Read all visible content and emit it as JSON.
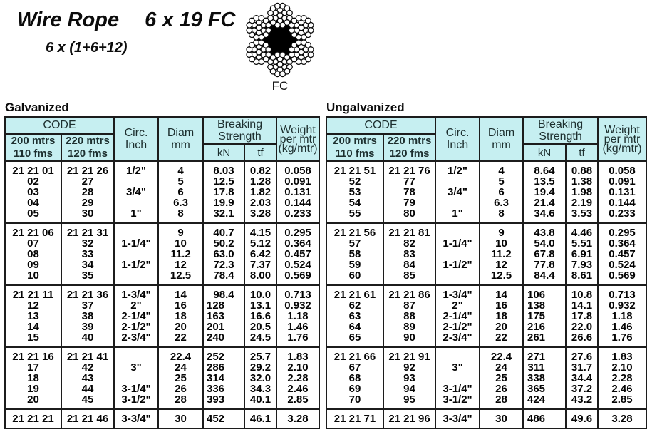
{
  "title": {
    "main": "Wire Rope",
    "spec": "6 x 19 FC",
    "construction": "6 x (1+6+12)"
  },
  "diagram": {
    "label": "FC"
  },
  "colors": {
    "header_bg": "#c6eff1",
    "border": "#1c1c1c",
    "text": "#050505"
  },
  "header": {
    "code": "CODE",
    "len200_l1": "200 mtrs",
    "len200_l2": "110 fms",
    "len220_l1": "220 mtrs",
    "len220_l2": "120 fms",
    "circ_l1": "Circ.",
    "circ_l2": "Inch",
    "diam_l1": "Diam",
    "diam_l2": "mm",
    "breaking_l1": "Breaking",
    "breaking_l2": "Strength",
    "kn": "kN",
    "tf": "tf",
    "weight_l1": "Weight",
    "weight_l2": "per mtr",
    "weight_l3": "(kg/mtr)"
  },
  "tables": [
    {
      "label": "Galvanized",
      "groups": [
        {
          "rows": [
            [
              "21 21 01",
              "21 21 26",
              "1/2\"",
              "4",
              "8.03",
              "0.82",
              "0.058"
            ],
            [
              "02",
              "27",
              "",
              "5",
              "12.5",
              "1.28",
              "0.091"
            ],
            [
              "03",
              "28",
              "3/4\"",
              "6",
              "17.8",
              "1.82",
              "0.131"
            ],
            [
              "04",
              "29",
              "",
              "6.3",
              "19.9",
              "2.03",
              "0.144"
            ],
            [
              "05",
              "30",
              "1\"",
              "8",
              "32.1",
              "3.28",
              "0.233"
            ]
          ]
        },
        {
          "rows": [
            [
              "21 21 06",
              "21 21 31",
              "",
              "9",
              "40.7",
              "4.15",
              "0.295"
            ],
            [
              "07",
              "32",
              "1-1/4\"",
              "10",
              "50.2",
              "5.12",
              "0.364"
            ],
            [
              "08",
              "33",
              "",
              "11.2",
              "63.0",
              "6.42",
              "0.457"
            ],
            [
              "09",
              "34",
              "1-1/2\"",
              "12",
              "72.3",
              "7.37",
              "0.524"
            ],
            [
              "10",
              "35",
              "",
              "12.5",
              "78.4",
              "8.00",
              "0.569"
            ]
          ]
        },
        {
          "rows": [
            [
              "21 21 11",
              "21 21 36",
              "1-3/4\"",
              "14",
              "98.4",
              "10.0",
              "0.713"
            ],
            [
              "12",
              "37",
              "2\"",
              "16",
              "128",
              "13.1",
              "0.932"
            ],
            [
              "13",
              "38",
              "2-1/4\"",
              "18",
              "163",
              "16.6",
              "1.18"
            ],
            [
              "14",
              "39",
              "2-1/2\"",
              "20",
              "201",
              "20.5",
              "1.46"
            ],
            [
              "15",
              "40",
              "2-3/4\"",
              "22",
              "240",
              "24.5",
              "1.76"
            ]
          ]
        },
        {
          "rows": [
            [
              "21 21 16",
              "21 21 41",
              "",
              "22.4",
              "252",
              "25.7",
              "1.83"
            ],
            [
              "17",
              "42",
              "3\"",
              "24",
              "286",
              "29.2",
              "2.10"
            ],
            [
              "18",
              "43",
              "",
              "25",
              "314",
              "32.0",
              "2.28"
            ],
            [
              "19",
              "44",
              "3-1/4\"",
              "26",
              "336",
              "34.3",
              "2.46"
            ],
            [
              "20",
              "45",
              "3-1/2\"",
              "28",
              "393",
              "40.1",
              "2.85"
            ]
          ]
        },
        {
          "rows": [
            [
              "21 21 21",
              "21 21 46",
              "3-3/4\"",
              "30",
              "452",
              "46.1",
              "3.28"
            ]
          ]
        }
      ]
    },
    {
      "label": "Ungalvanized",
      "groups": [
        {
          "rows": [
            [
              "21 21 51",
              "21 21 76",
              "1/2\"",
              "4",
              "8.64",
              "0.88",
              "0.058"
            ],
            [
              "52",
              "77",
              "",
              "5",
              "13.5",
              "1.38",
              "0.091"
            ],
            [
              "53",
              "78",
              "3/4\"",
              "6",
              "19.4",
              "1.98",
              "0.131"
            ],
            [
              "54",
              "79",
              "",
              "6.3",
              "21.4",
              "2.19",
              "0.144"
            ],
            [
              "55",
              "80",
              "1\"",
              "8",
              "34.6",
              "3.53",
              "0.233"
            ]
          ]
        },
        {
          "rows": [
            [
              "21 21 56",
              "21 21 81",
              "",
              "9",
              "43.8",
              "4.46",
              "0.295"
            ],
            [
              "57",
              "82",
              "1-1/4\"",
              "10",
              "54.0",
              "5.51",
              "0.364"
            ],
            [
              "58",
              "83",
              "",
              "11.2",
              "67.8",
              "6.91",
              "0.457"
            ],
            [
              "59",
              "84",
              "1-1/2\"",
              "12",
              "77.8",
              "7.93",
              "0.524"
            ],
            [
              "60",
              "85",
              "",
              "12.5",
              "84.4",
              "8.61",
              "0.569"
            ]
          ]
        },
        {
          "rows": [
            [
              "21 21 61",
              "21 21 86",
              "1-3/4\"",
              "14",
              "106",
              "10.8",
              "0.713"
            ],
            [
              "62",
              "87",
              "2\"",
              "16",
              "138",
              "14.1",
              "0.932"
            ],
            [
              "63",
              "88",
              "2-1/4\"",
              "18",
              "175",
              "17.8",
              "1.18"
            ],
            [
              "64",
              "89",
              "2-1/2\"",
              "20",
              "216",
              "22.0",
              "1.46"
            ],
            [
              "65",
              "90",
              "2-3/4\"",
              "22",
              "261",
              "26.6",
              "1.76"
            ]
          ]
        },
        {
          "rows": [
            [
              "21 21 66",
              "21 21 91",
              "",
              "22.4",
              "271",
              "27.6",
              "1.83"
            ],
            [
              "67",
              "92",
              "3\"",
              "24",
              "311",
              "31.7",
              "2.10"
            ],
            [
              "68",
              "93",
              "",
              "25",
              "338",
              "34.4",
              "2.28"
            ],
            [
              "69",
              "94",
              "3-1/4\"",
              "26",
              "365",
              "37.2",
              "2.46"
            ],
            [
              "70",
              "95",
              "3-1/2\"",
              "28",
              "424",
              "43.2",
              "2.85"
            ]
          ]
        },
        {
          "rows": [
            [
              "21 21 71",
              "21 21 96",
              "3-3/4\"",
              "30",
              "486",
              "49.6",
              "3.28"
            ]
          ]
        }
      ]
    }
  ]
}
